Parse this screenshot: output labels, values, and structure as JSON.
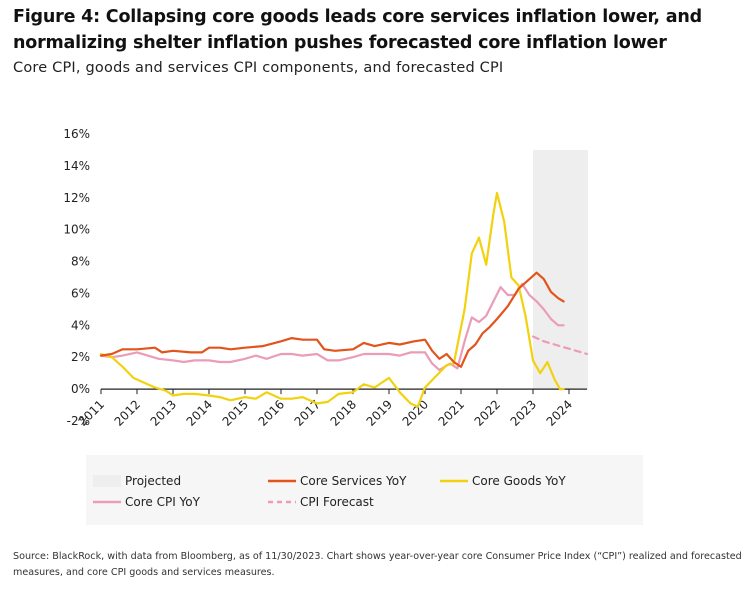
{
  "header": {
    "title_line1": "Figure 4: Collapsing core goods leads core services inflation lower, and",
    "title_line2": "normalizing shelter inflation pushes forecasted core inflation lower",
    "subtitle": "Core CPI, goods and services CPI components, and forecasted CPI"
  },
  "footer": {
    "source_line1": "Source: BlackRock, with data from Bloomberg, as of 11/30/2023. Chart shows year-over-year core Consumer Price Index (“CPI”) realized and forecasted",
    "source_line2": "measures, and core CPI goods and services measures."
  },
  "colors": {
    "core_services": "#e2541c",
    "core_goods": "#f2d20f",
    "core_cpi": "#eb9cb8",
    "cpi_forecast": "#eb9cb8",
    "projected_shade": "#eeeeee"
  },
  "chart_data": {
    "type": "line",
    "x_axis": {
      "ticks": [
        "2011",
        "2012",
        "2013",
        "2014",
        "2015",
        "2016",
        "2017",
        "2018",
        "2019",
        "2020",
        "2021",
        "2022",
        "2023",
        "2024"
      ],
      "range": [
        2011,
        2024.5
      ]
    },
    "y_axis": {
      "ticks": [
        "-2%",
        "0%",
        "2%",
        "4%",
        "6%",
        "8%",
        "10%",
        "12%",
        "14%",
        "16%"
      ],
      "range": [
        -2,
        16
      ],
      "unit": "%"
    },
    "grid": false,
    "legend": {
      "placement": "bottom",
      "items": [
        {
          "label": "Projected",
          "key": "projected",
          "style": "shade"
        },
        {
          "label": "Core Services YoY",
          "key": "core_services",
          "style": "solid"
        },
        {
          "label": "Core Goods YoY",
          "key": "core_goods",
          "style": "solid"
        },
        {
          "label": "Core CPI YoY",
          "key": "core_cpi",
          "style": "solid"
        },
        {
          "label": "CPI Forecast",
          "key": "cpi_forecast",
          "style": "dashed"
        }
      ]
    },
    "projected_range": [
      2023.0,
      2024.5
    ],
    "series": [
      {
        "name": "Core Services YoY",
        "key": "core_services",
        "points": [
          [
            2011.0,
            2.1
          ],
          [
            2011.3,
            2.2
          ],
          [
            2011.6,
            2.5
          ],
          [
            2012.0,
            2.5
          ],
          [
            2012.5,
            2.6
          ],
          [
            2012.7,
            2.3
          ],
          [
            2013.0,
            2.4
          ],
          [
            2013.5,
            2.3
          ],
          [
            2013.8,
            2.3
          ],
          [
            2014.0,
            2.6
          ],
          [
            2014.3,
            2.6
          ],
          [
            2014.6,
            2.5
          ],
          [
            2015.0,
            2.6
          ],
          [
            2015.5,
            2.7
          ],
          [
            2016.0,
            3.0
          ],
          [
            2016.3,
            3.2
          ],
          [
            2016.6,
            3.1
          ],
          [
            2017.0,
            3.1
          ],
          [
            2017.2,
            2.5
          ],
          [
            2017.5,
            2.4
          ],
          [
            2018.0,
            2.5
          ],
          [
            2018.3,
            2.9
          ],
          [
            2018.6,
            2.7
          ],
          [
            2019.0,
            2.9
          ],
          [
            2019.3,
            2.8
          ],
          [
            2019.7,
            3.0
          ],
          [
            2020.0,
            3.1
          ],
          [
            2020.2,
            2.4
          ],
          [
            2020.4,
            1.9
          ],
          [
            2020.6,
            2.2
          ],
          [
            2020.8,
            1.7
          ],
          [
            2021.0,
            1.4
          ],
          [
            2021.2,
            2.4
          ],
          [
            2021.4,
            2.8
          ],
          [
            2021.6,
            3.5
          ],
          [
            2021.8,
            3.9
          ],
          [
            2022.0,
            4.4
          ],
          [
            2022.3,
            5.2
          ],
          [
            2022.6,
            6.3
          ],
          [
            2022.8,
            6.7
          ],
          [
            2023.1,
            7.3
          ],
          [
            2023.3,
            6.9
          ],
          [
            2023.5,
            6.1
          ],
          [
            2023.7,
            5.7
          ],
          [
            2023.85,
            5.5
          ]
        ]
      },
      {
        "name": "Core Goods YoY",
        "key": "core_goods",
        "points": [
          [
            2011.0,
            2.2
          ],
          [
            2011.3,
            2.0
          ],
          [
            2011.6,
            1.4
          ],
          [
            2011.9,
            0.7
          ],
          [
            2012.2,
            0.4
          ],
          [
            2012.5,
            0.1
          ],
          [
            2012.8,
            -0.1
          ],
          [
            2013.0,
            -0.4
          ],
          [
            2013.3,
            -0.3
          ],
          [
            2013.6,
            -0.3
          ],
          [
            2014.0,
            -0.4
          ],
          [
            2014.3,
            -0.5
          ],
          [
            2014.6,
            -0.7
          ],
          [
            2015.0,
            -0.5
          ],
          [
            2015.3,
            -0.6
          ],
          [
            2015.6,
            -0.2
          ],
          [
            2016.0,
            -0.6
          ],
          [
            2016.3,
            -0.6
          ],
          [
            2016.6,
            -0.5
          ],
          [
            2017.0,
            -0.9
          ],
          [
            2017.3,
            -0.8
          ],
          [
            2017.6,
            -0.3
          ],
          [
            2018.0,
            -0.2
          ],
          [
            2018.3,
            0.3
          ],
          [
            2018.6,
            0.1
          ],
          [
            2019.0,
            0.7
          ],
          [
            2019.3,
            -0.2
          ],
          [
            2019.6,
            -0.9
          ],
          [
            2019.8,
            -1.1
          ],
          [
            2020.0,
            0.1
          ],
          [
            2020.3,
            0.8
          ],
          [
            2020.6,
            1.5
          ],
          [
            2020.8,
            1.6
          ],
          [
            2021.1,
            5.0
          ],
          [
            2021.3,
            8.5
          ],
          [
            2021.5,
            9.5
          ],
          [
            2021.7,
            7.8
          ],
          [
            2021.9,
            11.0
          ],
          [
            2022.0,
            12.3
          ],
          [
            2022.2,
            10.5
          ],
          [
            2022.4,
            7.0
          ],
          [
            2022.6,
            6.5
          ],
          [
            2022.8,
            4.5
          ],
          [
            2023.0,
            1.8
          ],
          [
            2023.2,
            1.0
          ],
          [
            2023.4,
            1.7
          ],
          [
            2023.6,
            0.6
          ],
          [
            2023.75,
            0.0
          ],
          [
            2023.85,
            0.0
          ]
        ]
      },
      {
        "name": "Core CPI YoY",
        "key": "core_cpi",
        "points": [
          [
            2011.0,
            2.1
          ],
          [
            2011.3,
            2.0
          ],
          [
            2011.6,
            2.1
          ],
          [
            2012.0,
            2.3
          ],
          [
            2012.3,
            2.1
          ],
          [
            2012.6,
            1.9
          ],
          [
            2013.0,
            1.8
          ],
          [
            2013.3,
            1.7
          ],
          [
            2013.6,
            1.8
          ],
          [
            2014.0,
            1.8
          ],
          [
            2014.3,
            1.7
          ],
          [
            2014.6,
            1.7
          ],
          [
            2015.0,
            1.9
          ],
          [
            2015.3,
            2.1
          ],
          [
            2015.6,
            1.9
          ],
          [
            2016.0,
            2.2
          ],
          [
            2016.3,
            2.2
          ],
          [
            2016.6,
            2.1
          ],
          [
            2017.0,
            2.2
          ],
          [
            2017.3,
            1.8
          ],
          [
            2017.6,
            1.8
          ],
          [
            2018.0,
            2.0
          ],
          [
            2018.3,
            2.2
          ],
          [
            2018.6,
            2.2
          ],
          [
            2019.0,
            2.2
          ],
          [
            2019.3,
            2.1
          ],
          [
            2019.6,
            2.3
          ],
          [
            2020.0,
            2.3
          ],
          [
            2020.2,
            1.6
          ],
          [
            2020.4,
            1.2
          ],
          [
            2020.7,
            1.6
          ],
          [
            2020.9,
            1.3
          ],
          [
            2021.1,
            3.0
          ],
          [
            2021.3,
            4.5
          ],
          [
            2021.5,
            4.2
          ],
          [
            2021.7,
            4.6
          ],
          [
            2021.9,
            5.5
          ],
          [
            2022.1,
            6.4
          ],
          [
            2022.3,
            5.9
          ],
          [
            2022.5,
            5.9
          ],
          [
            2022.7,
            6.6
          ],
          [
            2022.9,
            5.9
          ],
          [
            2023.1,
            5.5
          ],
          [
            2023.3,
            5.0
          ],
          [
            2023.5,
            4.4
          ],
          [
            2023.7,
            4.0
          ],
          [
            2023.85,
            4.0
          ]
        ]
      },
      {
        "name": "CPI Forecast",
        "key": "cpi_forecast",
        "dashed": true,
        "points": [
          [
            2023.0,
            3.3
          ],
          [
            2023.3,
            3.0
          ],
          [
            2023.6,
            2.8
          ],
          [
            2023.9,
            2.6
          ],
          [
            2024.2,
            2.4
          ],
          [
            2024.5,
            2.2
          ]
        ]
      }
    ]
  }
}
